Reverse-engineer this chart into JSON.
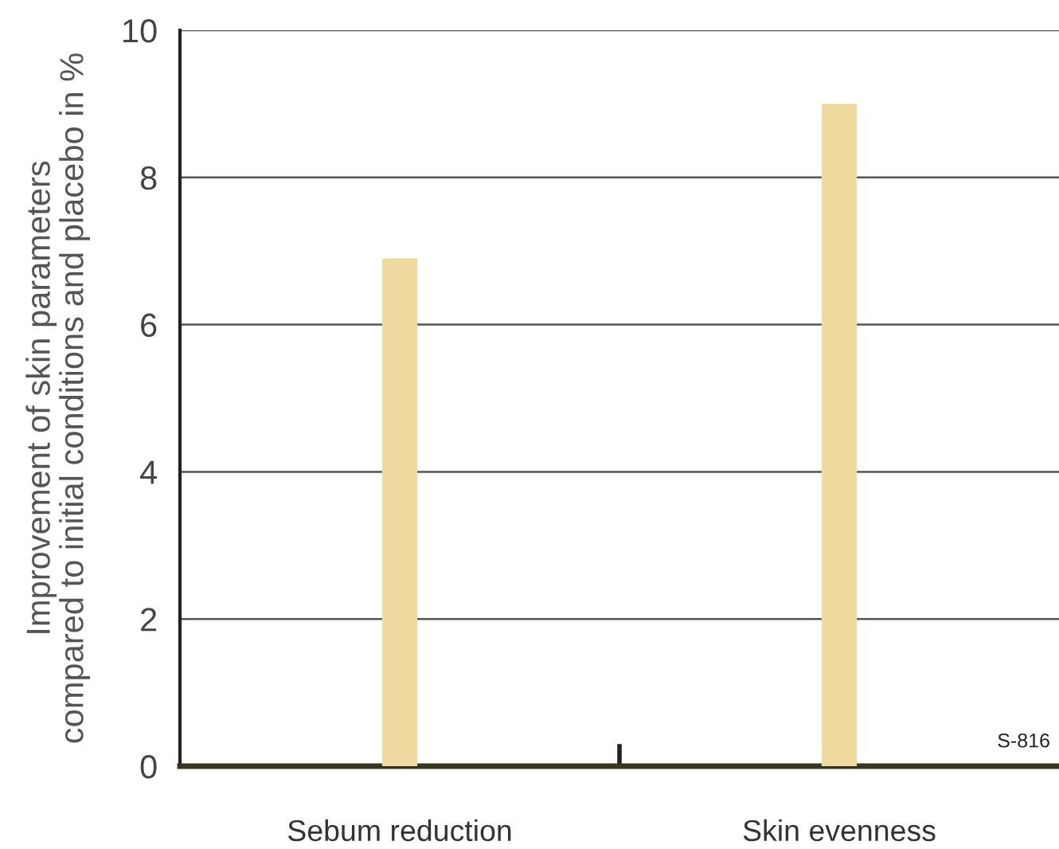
{
  "chart_data": {
    "type": "bar",
    "categories": [
      "Sebum reduction",
      "Skin evenness"
    ],
    "values": [
      6.9,
      9.0
    ],
    "color": "#efdba0",
    "ylabel": "Improvement of skin parameters\ncompared to initial conditions and placebo in %",
    "ylim": [
      0,
      10
    ],
    "yticks": [
      0,
      2,
      4,
      6,
      8,
      10
    ],
    "grid": "y",
    "legend": false,
    "annotations": [
      "S-816"
    ]
  }
}
